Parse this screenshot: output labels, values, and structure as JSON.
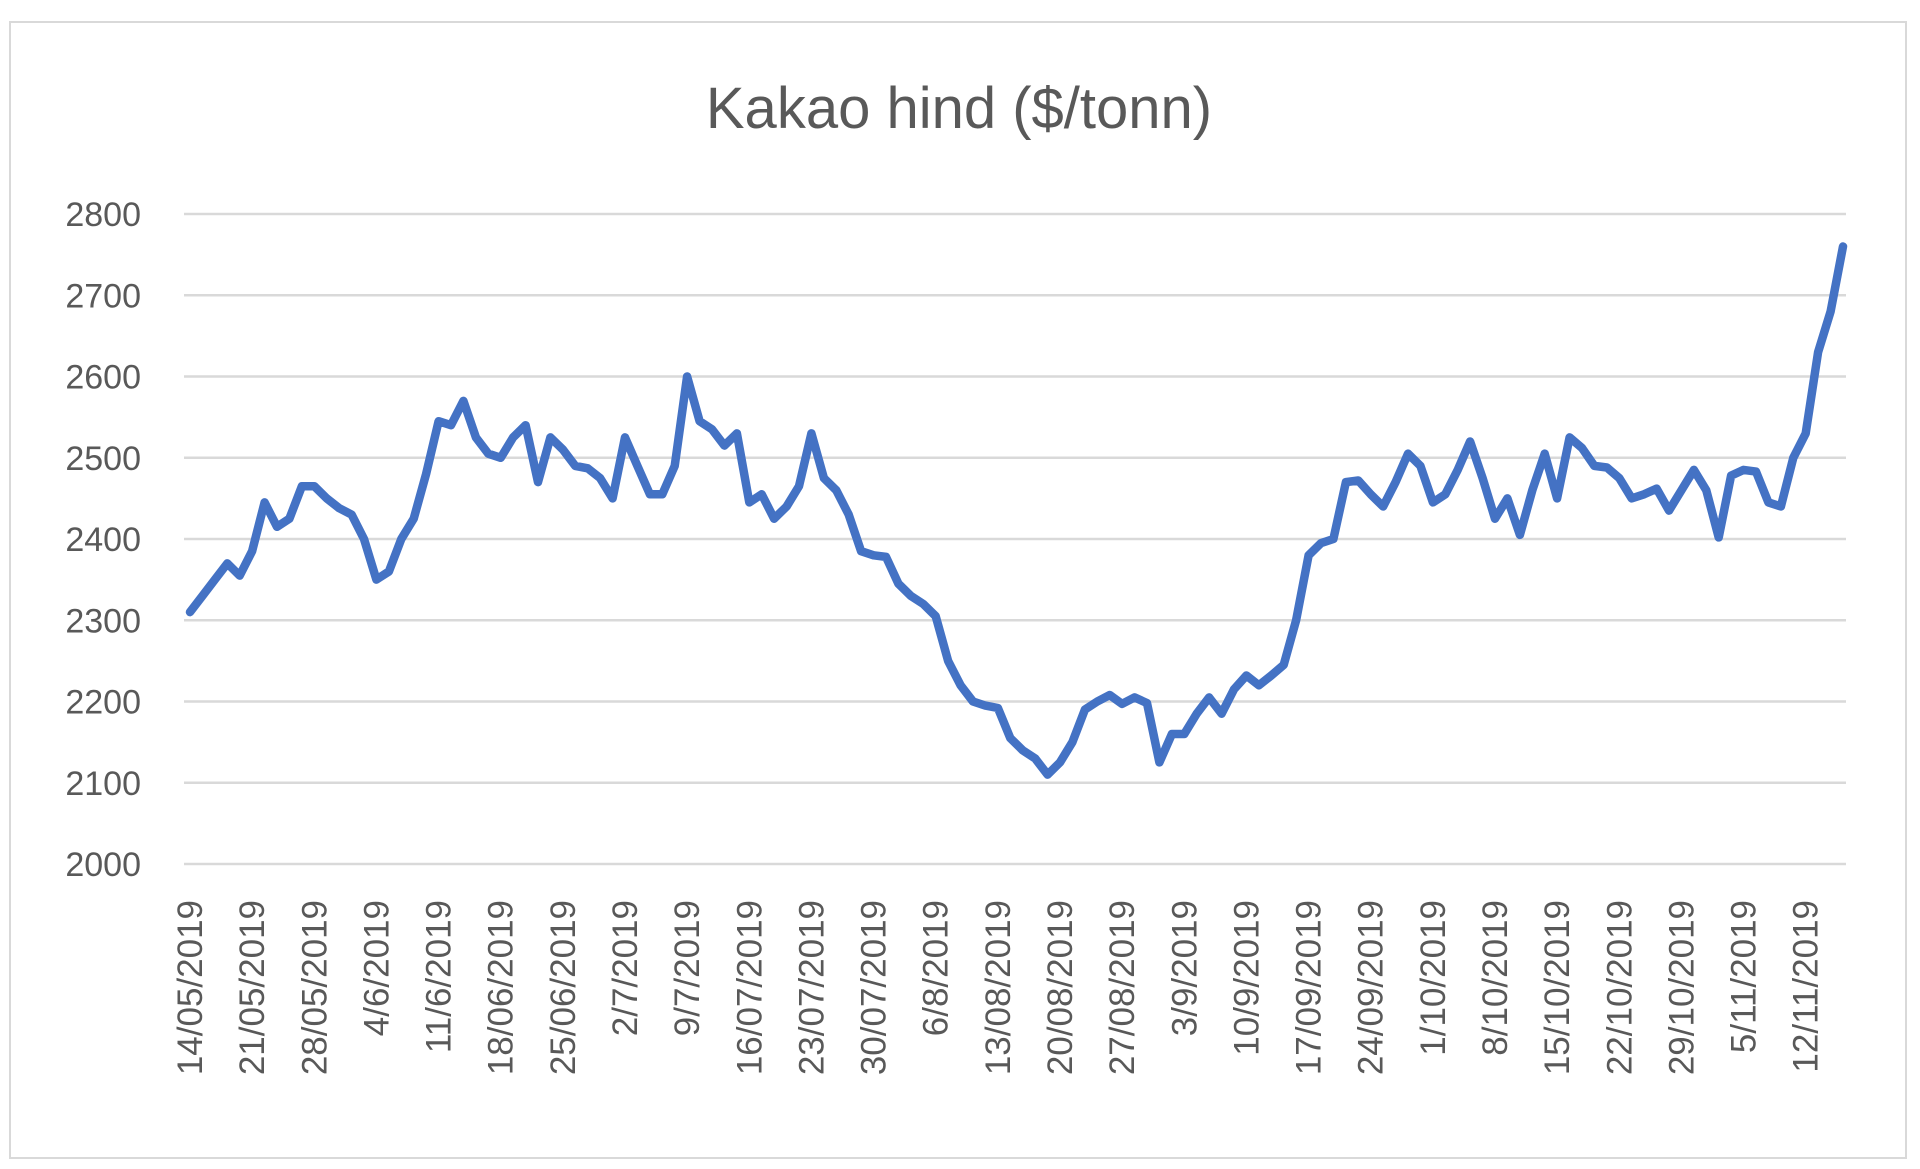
{
  "chart_data": {
    "type": "line",
    "title": "Kakao hind ($/tonn)",
    "xlabel": "",
    "ylabel": "",
    "ylim": [
      2000,
      2800
    ],
    "yticks": [
      2000,
      2100,
      2200,
      2300,
      2400,
      2500,
      2600,
      2700,
      2800
    ],
    "grid": true,
    "legend": "none",
    "line_color": "#4472C4",
    "x_tick_labels": [
      "14/05/2019",
      "21/05/2019",
      "28/05/2019",
      "4/6/2019",
      "11/6/2019",
      "18/06/2019",
      "25/06/2019",
      "2/7/2019",
      "9/7/2019",
      "16/07/2019",
      "23/07/2019",
      "30/07/2019",
      "6/8/2019",
      "13/08/2019",
      "20/08/2019",
      "27/08/2019",
      "3/9/2019",
      "10/9/2019",
      "17/09/2019",
      "24/09/2019",
      "1/10/2019",
      "8/10/2019",
      "15/10/2019",
      "22/10/2019",
      "29/10/2019",
      "5/11/2019",
      "12/11/2019"
    ],
    "points_per_tick": 5,
    "series": [
      {
        "values": [
          2310,
          2330,
          2350,
          2370,
          2355,
          2385,
          2445,
          2415,
          2425,
          2465,
          2465,
          2450,
          2438,
          2430,
          2400,
          2350,
          2360,
          2400,
          2425,
          2480,
          2545,
          2540,
          2570,
          2525,
          2505,
          2500,
          2525,
          2540,
          2470,
          2525,
          2510,
          2490,
          2487,
          2475,
          2450,
          2525,
          2490,
          2455,
          2455,
          2490,
          2600,
          2545,
          2535,
          2515,
          2530,
          2445,
          2455,
          2425,
          2440,
          2465,
          2530,
          2475,
          2460,
          2430,
          2385,
          2380,
          2378,
          2345,
          2330,
          2320,
          2305,
          2250,
          2220,
          2200,
          2195,
          2192,
          2155,
          2140,
          2130,
          2110,
          2125,
          2150,
          2190,
          2200,
          2208,
          2197,
          2205,
          2198,
          2125,
          2160,
          2160,
          2185,
          2205,
          2185,
          2215,
          2232,
          2220,
          2232,
          2245,
          2300,
          2380,
          2395,
          2400,
          2470,
          2472,
          2455,
          2440,
          2470,
          2505,
          2490,
          2445,
          2455,
          2485,
          2520,
          2475,
          2425,
          2450,
          2405,
          2460,
          2505,
          2450,
          2525,
          2512,
          2490,
          2488,
          2475,
          2450,
          2455,
          2462,
          2435,
          2460,
          2485,
          2460,
          2402,
          2478,
          2485,
          2483,
          2445,
          2440,
          2500,
          2530,
          2630,
          2680,
          2760
        ]
      }
    ]
  }
}
